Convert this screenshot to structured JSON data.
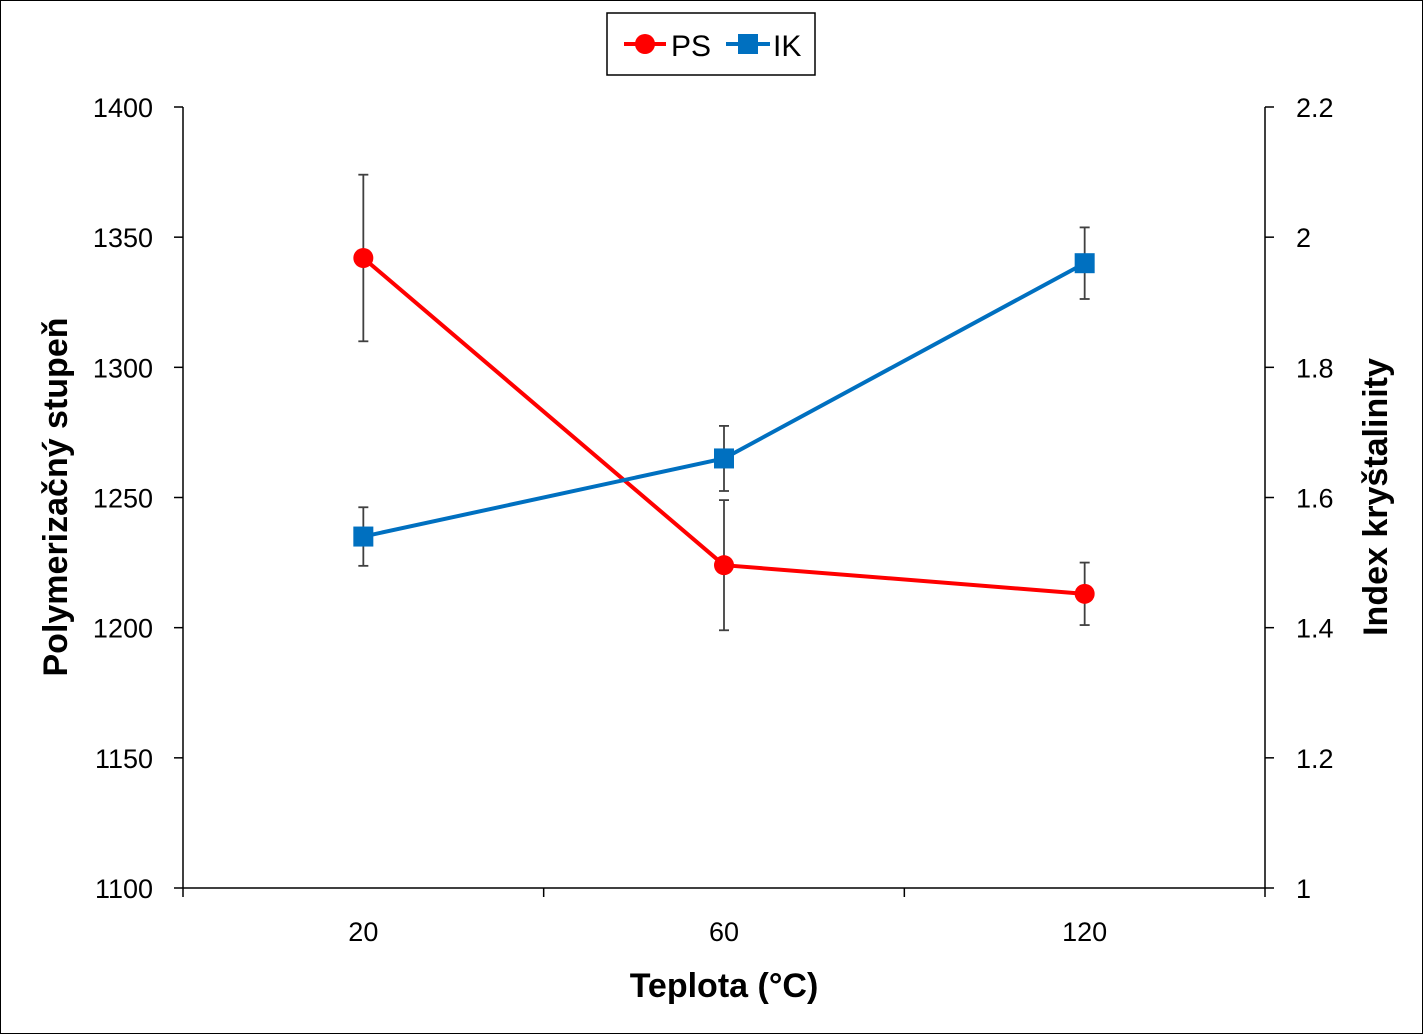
{
  "chart_data": {
    "type": "line",
    "categories": [
      "20",
      "60",
      "120"
    ],
    "xlabel": "Teplota (°C)",
    "ylabel_left": "Polymerizačný stupeň",
    "ylabel_right": "Index kryštalinity",
    "ylim_left": [
      1100,
      1400
    ],
    "ylim_right": [
      1,
      2.2
    ],
    "yticks_left": [
      "1100",
      "1150",
      "1200",
      "1250",
      "1300",
      "1350",
      "1400"
    ],
    "yticks_right": [
      "1",
      "1.2",
      "1.4",
      "1.6",
      "1.8",
      "2",
      "2.2"
    ],
    "legend_position": "top-center",
    "series": [
      {
        "name": "PS",
        "axis": "left",
        "color": "#ff0000",
        "marker": "circle",
        "values": [
          1342,
          1224,
          1213
        ],
        "error": [
          32,
          25,
          12
        ]
      },
      {
        "name": "IK",
        "axis": "right",
        "color": "#0070c0",
        "marker": "square",
        "values": [
          1.54,
          1.66,
          1.96
        ],
        "error": [
          0.045,
          0.05,
          0.055
        ]
      }
    ]
  }
}
